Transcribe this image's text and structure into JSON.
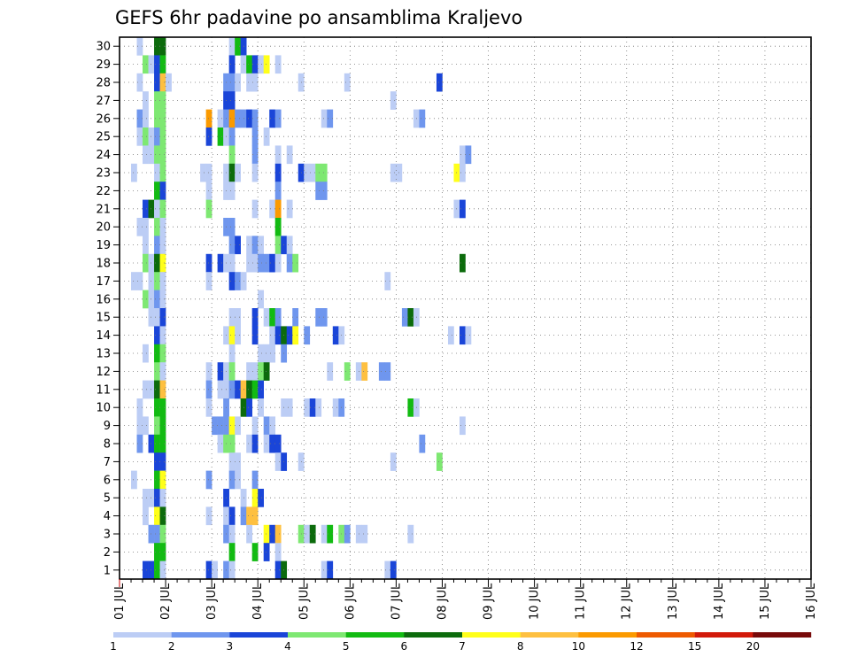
{
  "chart_data": {
    "type": "heatmap",
    "title": "GEFS 6hr padavine po ansamblima Kraljevo",
    "xlabel": "",
    "ylabel": "",
    "x_tick_labels": [
      "01 JUL",
      "02 JUL",
      "03 JUL",
      "04 JUL",
      "05 JUL",
      "06 JUL",
      "07 JUL",
      "08 JUL",
      "09 JUL",
      "10 JUL",
      "11 JUL",
      "12 JUL",
      "13 JUL",
      "14 JUL",
      "15 JUL",
      "16 JUL"
    ],
    "y_tick_labels": [
      "1",
      "2",
      "3",
      "4",
      "5",
      "6",
      "7",
      "8",
      "9",
      "10",
      "11",
      "12",
      "13",
      "14",
      "15",
      "16",
      "17",
      "18",
      "19",
      "20",
      "21",
      "22",
      "23",
      "24",
      "25",
      "26",
      "27",
      "28",
      "29",
      "30"
    ],
    "xlim": [
      0,
      60
    ],
    "ylim": [
      0.5,
      30.5
    ],
    "grid": true,
    "colorbar": {
      "levels": [
        "1",
        "2",
        "3",
        "4",
        "5",
        "6",
        "7",
        "8",
        "10",
        "12",
        "15",
        "20"
      ],
      "colors": [
        "#bccdf5",
        "#6f96ee",
        "#1a45d8",
        "#7ee872",
        "#12bb12",
        "#0c6b0c",
        "#ffff1a",
        "#fec040",
        "#fb9a00",
        "#ee5a00",
        "#d21a0a",
        "#780a0a"
      ]
    },
    "cells": [
      [
        30,
        1.5,
        1
      ],
      [
        30,
        3,
        6
      ],
      [
        30,
        3.5,
        6
      ],
      [
        30,
        9.5,
        1
      ],
      [
        30,
        10,
        5
      ],
      [
        30,
        10.5,
        3
      ],
      [
        29,
        2,
        4
      ],
      [
        29,
        2.5,
        1
      ],
      [
        29,
        3,
        3
      ],
      [
        29,
        3.5,
        5
      ],
      [
        29,
        9.5,
        3
      ],
      [
        29,
        10.5,
        1
      ],
      [
        29,
        11,
        5
      ],
      [
        29,
        11.5,
        3
      ],
      [
        29,
        12,
        1
      ],
      [
        29,
        12.5,
        7
      ],
      [
        29,
        13.5,
        1
      ],
      [
        28,
        1.5,
        1
      ],
      [
        28,
        3,
        3
      ],
      [
        28,
        3.5,
        8
      ],
      [
        28,
        4,
        1
      ],
      [
        28,
        9,
        2
      ],
      [
        28,
        9.5,
        2
      ],
      [
        28,
        10,
        1
      ],
      [
        28,
        11,
        1
      ],
      [
        28,
        11.5,
        1
      ],
      [
        28,
        15.5,
        1
      ],
      [
        28,
        19.5,
        1
      ],
      [
        28,
        27.5,
        3
      ],
      [
        27,
        2,
        1
      ],
      [
        27,
        3,
        4
      ],
      [
        27,
        3.5,
        4
      ],
      [
        27,
        9,
        3
      ],
      [
        27,
        9.5,
        3
      ],
      [
        27,
        23.5,
        1
      ],
      [
        26,
        1.5,
        2
      ],
      [
        26,
        2,
        1
      ],
      [
        26,
        3,
        4
      ],
      [
        26,
        3.5,
        4
      ],
      [
        26,
        7.5,
        9
      ],
      [
        26,
        8.5,
        1
      ],
      [
        26,
        9,
        2
      ],
      [
        26,
        9.5,
        9
      ],
      [
        26,
        10,
        2
      ],
      [
        26,
        10.5,
        2
      ],
      [
        26,
        11,
        3
      ],
      [
        26,
        11.5,
        2
      ],
      [
        26,
        13,
        3
      ],
      [
        26,
        13.5,
        2
      ],
      [
        26,
        17.5,
        1
      ],
      [
        26,
        18,
        2
      ],
      [
        26,
        25.5,
        1
      ],
      [
        26,
        26,
        2
      ],
      [
        25,
        1.5,
        1
      ],
      [
        25,
        2,
        4
      ],
      [
        25,
        2.5,
        1
      ],
      [
        25,
        3,
        2
      ],
      [
        25,
        3.5,
        4
      ],
      [
        25,
        7.5,
        3
      ],
      [
        25,
        8.5,
        5
      ],
      [
        25,
        9,
        1
      ],
      [
        25,
        9.5,
        2
      ],
      [
        25,
        11.5,
        2
      ],
      [
        25,
        12.5,
        1
      ],
      [
        24,
        2,
        1
      ],
      [
        24,
        2.5,
        1
      ],
      [
        24,
        3,
        4
      ],
      [
        24,
        3.5,
        4
      ],
      [
        24,
        9.5,
        4
      ],
      [
        24,
        11.5,
        2
      ],
      [
        24,
        13.5,
        1
      ],
      [
        24,
        14.5,
        1
      ],
      [
        24,
        29.5,
        1
      ],
      [
        24,
        30,
        2
      ],
      [
        23,
        1,
        1
      ],
      [
        23,
        3,
        1
      ],
      [
        23,
        3.5,
        4
      ],
      [
        23,
        7,
        1
      ],
      [
        23,
        7.5,
        1
      ],
      [
        23,
        9,
        1
      ],
      [
        23,
        9.5,
        6
      ],
      [
        23,
        10,
        1
      ],
      [
        23,
        11.5,
        1
      ],
      [
        23,
        13.5,
        3
      ],
      [
        23,
        15.5,
        3
      ],
      [
        23,
        16,
        1
      ],
      [
        23,
        16.5,
        1
      ],
      [
        23,
        17,
        4
      ],
      [
        23,
        17.5,
        4
      ],
      [
        23,
        23.5,
        1
      ],
      [
        23,
        24,
        1
      ],
      [
        23,
        29,
        7
      ],
      [
        23,
        29.5,
        1
      ],
      [
        22,
        3,
        5
      ],
      [
        22,
        3.5,
        3
      ],
      [
        22,
        7.5,
        1
      ],
      [
        22,
        9,
        1
      ],
      [
        22,
        9.5,
        1
      ],
      [
        22,
        13.5,
        2
      ],
      [
        22,
        17,
        2
      ],
      [
        22,
        17.5,
        2
      ],
      [
        21,
        2,
        3
      ],
      [
        21,
        2.5,
        6
      ],
      [
        21,
        3,
        1
      ],
      [
        21,
        3.5,
        4
      ],
      [
        21,
        7.5,
        4
      ],
      [
        21,
        11.5,
        1
      ],
      [
        21,
        13,
        1
      ],
      [
        21,
        13.5,
        9
      ],
      [
        21,
        14.5,
        1
      ],
      [
        21,
        29,
        1
      ],
      [
        21,
        29.5,
        3
      ],
      [
        20,
        1.5,
        1
      ],
      [
        20,
        2,
        1
      ],
      [
        20,
        3,
        4
      ],
      [
        20,
        3.5,
        1
      ],
      [
        20,
        9,
        2
      ],
      [
        20,
        9.5,
        2
      ],
      [
        20,
        13.5,
        5
      ],
      [
        19,
        2,
        1
      ],
      [
        19,
        3,
        2
      ],
      [
        19,
        3.5,
        1
      ],
      [
        19,
        9.5,
        2
      ],
      [
        19,
        10,
        3
      ],
      [
        19,
        11,
        1
      ],
      [
        19,
        11.5,
        2
      ],
      [
        19,
        12,
        1
      ],
      [
        19,
        13.5,
        4
      ],
      [
        19,
        14,
        3
      ],
      [
        19,
        14.5,
        1
      ],
      [
        18,
        2,
        4
      ],
      [
        18,
        2.5,
        1
      ],
      [
        18,
        3,
        6
      ],
      [
        18,
        3.5,
        7
      ],
      [
        18,
        7.5,
        3
      ],
      [
        18,
        8.5,
        3
      ],
      [
        18,
        9,
        1
      ],
      [
        18,
        9.5,
        1
      ],
      [
        18,
        11,
        1
      ],
      [
        18,
        11.5,
        1
      ],
      [
        18,
        12,
        2
      ],
      [
        18,
        12.5,
        2
      ],
      [
        18,
        13,
        3
      ],
      [
        18,
        13.5,
        1
      ],
      [
        18,
        14.5,
        2
      ],
      [
        18,
        15,
        4
      ],
      [
        18,
        29.5,
        6
      ],
      [
        17,
        1,
        1
      ],
      [
        17,
        1.5,
        1
      ],
      [
        17,
        2.5,
        1
      ],
      [
        17,
        3,
        4
      ],
      [
        17,
        3.5,
        1
      ],
      [
        17,
        7.5,
        1
      ],
      [
        17,
        9.5,
        3
      ],
      [
        17,
        10,
        2
      ],
      [
        17,
        10.5,
        1
      ],
      [
        17,
        23,
        1
      ],
      [
        16,
        2,
        4
      ],
      [
        16,
        2.5,
        1
      ],
      [
        16,
        3,
        2
      ],
      [
        16,
        3.5,
        1
      ],
      [
        16,
        12,
        1
      ],
      [
        15,
        2.5,
        1
      ],
      [
        15,
        3,
        1
      ],
      [
        15,
        3.5,
        3
      ],
      [
        15,
        9.5,
        1
      ],
      [
        15,
        10,
        1
      ],
      [
        15,
        11.5,
        3
      ],
      [
        15,
        12.5,
        1
      ],
      [
        15,
        13,
        5
      ],
      [
        15,
        13.5,
        2
      ],
      [
        15,
        15,
        2
      ],
      [
        15,
        17,
        2
      ],
      [
        15,
        17.5,
        2
      ],
      [
        15,
        24.5,
        2
      ],
      [
        15,
        25,
        6
      ],
      [
        15,
        25.5,
        1
      ],
      [
        14,
        3,
        3
      ],
      [
        14,
        3.5,
        1
      ],
      [
        14,
        9,
        1
      ],
      [
        14,
        9.5,
        7
      ],
      [
        14,
        10,
        1
      ],
      [
        14,
        11.5,
        3
      ],
      [
        14,
        13,
        1
      ],
      [
        14,
        13.5,
        3
      ],
      [
        14,
        14,
        6
      ],
      [
        14,
        14.5,
        3
      ],
      [
        14,
        15,
        7
      ],
      [
        14,
        16,
        2
      ],
      [
        14,
        18.5,
        3
      ],
      [
        14,
        19,
        1
      ],
      [
        14,
        28.5,
        1
      ],
      [
        14,
        29.5,
        3
      ],
      [
        14,
        30,
        1
      ],
      [
        13,
        2,
        1
      ],
      [
        13,
        3,
        5
      ],
      [
        13,
        3.5,
        4
      ],
      [
        13,
        9.5,
        1
      ],
      [
        13,
        12,
        1
      ],
      [
        13,
        12.5,
        1
      ],
      [
        13,
        13,
        1
      ],
      [
        13,
        14,
        2
      ],
      [
        12,
        3,
        4
      ],
      [
        12,
        3.5,
        1
      ],
      [
        12,
        7.5,
        1
      ],
      [
        12,
        8.5,
        3
      ],
      [
        12,
        9,
        1
      ],
      [
        12,
        9.5,
        4
      ],
      [
        12,
        11,
        1
      ],
      [
        12,
        11.5,
        1
      ],
      [
        12,
        12,
        4
      ],
      [
        12,
        12.5,
        6
      ],
      [
        12,
        18,
        1
      ],
      [
        12,
        19.5,
        4
      ],
      [
        12,
        20.5,
        1
      ],
      [
        12,
        21,
        8
      ],
      [
        12,
        22.5,
        2
      ],
      [
        12,
        23,
        2
      ],
      [
        11,
        2,
        1
      ],
      [
        11,
        2.5,
        1
      ],
      [
        11,
        3,
        6
      ],
      [
        11,
        3.5,
        8
      ],
      [
        11,
        7.5,
        2
      ],
      [
        11,
        8.5,
        1
      ],
      [
        11,
        9,
        1
      ],
      [
        11,
        9.5,
        2
      ],
      [
        11,
        10,
        3
      ],
      [
        11,
        10.5,
        8
      ],
      [
        11,
        11,
        6
      ],
      [
        11,
        11.5,
        5
      ],
      [
        11,
        12,
        3
      ],
      [
        10,
        1.5,
        1
      ],
      [
        10,
        3,
        5
      ],
      [
        10,
        3.5,
        5
      ],
      [
        10,
        7.5,
        1
      ],
      [
        10,
        9,
        2
      ],
      [
        10,
        10.5,
        6
      ],
      [
        10,
        11,
        3
      ],
      [
        10,
        12,
        1
      ],
      [
        10,
        14,
        1
      ],
      [
        10,
        14.5,
        1
      ],
      [
        10,
        16,
        1
      ],
      [
        10,
        16.5,
        3
      ],
      [
        10,
        17,
        1
      ],
      [
        10,
        18.5,
        1
      ],
      [
        10,
        19,
        2
      ],
      [
        10,
        25,
        5
      ],
      [
        10,
        25.5,
        1
      ],
      [
        9,
        1.5,
        1
      ],
      [
        9,
        2,
        1
      ],
      [
        9,
        3,
        4
      ],
      [
        9,
        3.5,
        5
      ],
      [
        9,
        8,
        2
      ],
      [
        9,
        8.5,
        2
      ],
      [
        9,
        9,
        2
      ],
      [
        9,
        9.5,
        7
      ],
      [
        9,
        10,
        1
      ],
      [
        9,
        11.5,
        1
      ],
      [
        9,
        12.5,
        2
      ],
      [
        9,
        13,
        1
      ],
      [
        9,
        29.5,
        1
      ],
      [
        8,
        1.5,
        2
      ],
      [
        8,
        2.5,
        3
      ],
      [
        8,
        3,
        5
      ],
      [
        8,
        3.5,
        5
      ],
      [
        8,
        8.5,
        1
      ],
      [
        8,
        9,
        4
      ],
      [
        8,
        9.5,
        4
      ],
      [
        8,
        11,
        1
      ],
      [
        8,
        11.5,
        3
      ],
      [
        8,
        12.5,
        1
      ],
      [
        8,
        13,
        3
      ],
      [
        8,
        13.5,
        3
      ],
      [
        8,
        26,
        2
      ],
      [
        7,
        3,
        3
      ],
      [
        7,
        3.5,
        3
      ],
      [
        7,
        9.5,
        1
      ],
      [
        7,
        10,
        1
      ],
      [
        7,
        13.5,
        1
      ],
      [
        7,
        14,
        3
      ],
      [
        7,
        15.5,
        1
      ],
      [
        7,
        23.5,
        1
      ],
      [
        7,
        27.5,
        4
      ],
      [
        6,
        1,
        1
      ],
      [
        6,
        3,
        5
      ],
      [
        6,
        3.5,
        7
      ],
      [
        6,
        7.5,
        2
      ],
      [
        6,
        9.5,
        2
      ],
      [
        6,
        10,
        1
      ],
      [
        6,
        11.5,
        2
      ],
      [
        5,
        2,
        1
      ],
      [
        5,
        2.5,
        1
      ],
      [
        5,
        3,
        3
      ],
      [
        5,
        3.5,
        1
      ],
      [
        5,
        9,
        3
      ],
      [
        5,
        10.5,
        1
      ],
      [
        5,
        11.5,
        7
      ],
      [
        5,
        12,
        3
      ],
      [
        4,
        2,
        1
      ],
      [
        4,
        3,
        7
      ],
      [
        4,
        3.5,
        6
      ],
      [
        4,
        7.5,
        1
      ],
      [
        4,
        9,
        1
      ],
      [
        4,
        9.5,
        3
      ],
      [
        4,
        10.5,
        2
      ],
      [
        4,
        11,
        8
      ],
      [
        4,
        11.5,
        8
      ],
      [
        3,
        2.5,
        2
      ],
      [
        3,
        3,
        2
      ],
      [
        3,
        3.5,
        4
      ],
      [
        3,
        9,
        2
      ],
      [
        3,
        9.5,
        1
      ],
      [
        3,
        11,
        1
      ],
      [
        3,
        12.5,
        7
      ],
      [
        3,
        13,
        3
      ],
      [
        3,
        13.5,
        8
      ],
      [
        3,
        15.5,
        4
      ],
      [
        3,
        16,
        1
      ],
      [
        3,
        16.5,
        6
      ],
      [
        3,
        17.5,
        1
      ],
      [
        3,
        18,
        5
      ],
      [
        3,
        19,
        4
      ],
      [
        3,
        19.5,
        2
      ],
      [
        3,
        20.5,
        1
      ],
      [
        3,
        21,
        1
      ],
      [
        3,
        25,
        1
      ],
      [
        2,
        3,
        5
      ],
      [
        2,
        3.5,
        5
      ],
      [
        2,
        9.5,
        5
      ],
      [
        2,
        11.5,
        5
      ],
      [
        2,
        12.5,
        3
      ],
      [
        2,
        13.5,
        1
      ],
      [
        1,
        2,
        3
      ],
      [
        1,
        2.5,
        3
      ],
      [
        1,
        3,
        5
      ],
      [
        1,
        3.5,
        1
      ],
      [
        1,
        7.5,
        3
      ],
      [
        1,
        8,
        1
      ],
      [
        1,
        9,
        2
      ],
      [
        1,
        9.5,
        1
      ],
      [
        1,
        13.5,
        3
      ],
      [
        1,
        14,
        6
      ],
      [
        1,
        17.5,
        1
      ],
      [
        1,
        18,
        3
      ],
      [
        1,
        23,
        1
      ],
      [
        1,
        23.5,
        3
      ],
      [
        0,
        3,
        3
      ],
      [
        0,
        7.5,
        1
      ],
      [
        0,
        9,
        4
      ],
      [
        0,
        9.5,
        4
      ],
      [
        0,
        13.5,
        9
      ],
      [
        0,
        14,
        2
      ],
      [
        0,
        26.5,
        1
      ],
      [
        0,
        27,
        2
      ]
    ]
  }
}
